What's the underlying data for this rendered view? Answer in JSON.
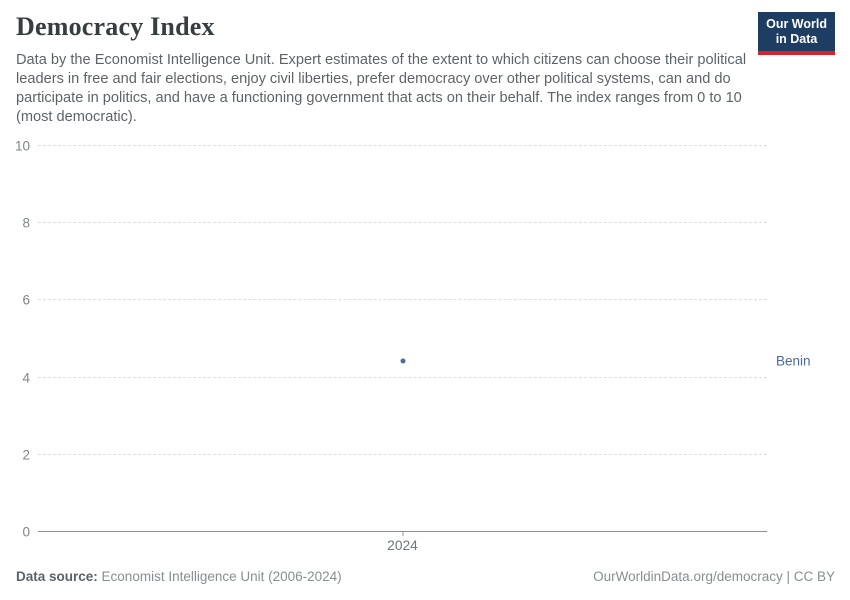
{
  "header": {
    "title": "Democracy Index",
    "subtitle": "Data by the Economist Intelligence Unit. Expert estimates of the extent to which citizens can choose their political leaders in free and fair elections, enjoy civil liberties, prefer democracy over other political systems, can and do participate in politics, and have a functioning government that acts on their behalf. The index ranges from 0 to 10 (most democratic).",
    "logo": {
      "line1": "Our World",
      "line2": "in Data",
      "bg_color": "#1d3d63",
      "bar_color": "#d8222e"
    }
  },
  "chart_data": {
    "type": "scatter",
    "title": "Democracy Index",
    "xlabel": "",
    "ylabel": "",
    "ylim": [
      0,
      10
    ],
    "yticks": [
      0,
      2,
      4,
      6,
      8,
      10
    ],
    "xticks": [
      "2024"
    ],
    "grid": "horizontal-dashed",
    "legend_position": "entity-label-right",
    "series": [
      {
        "name": "Benin",
        "color": "#4c6a9c",
        "x": [
          2024
        ],
        "values": [
          4.4
        ]
      }
    ]
  },
  "footer": {
    "source_label": "Data source:",
    "source_value": "Economist Intelligence Unit (2006-2024)",
    "attribution": "OurWorldinData.org/democracy | CC BY"
  },
  "colors": {
    "accent_blue": "#4c6a9c",
    "gridline": "#dedede",
    "axis_line": "#8f8f8f",
    "tick_label": "#818589",
    "subtitle_text": "#5f6368"
  }
}
